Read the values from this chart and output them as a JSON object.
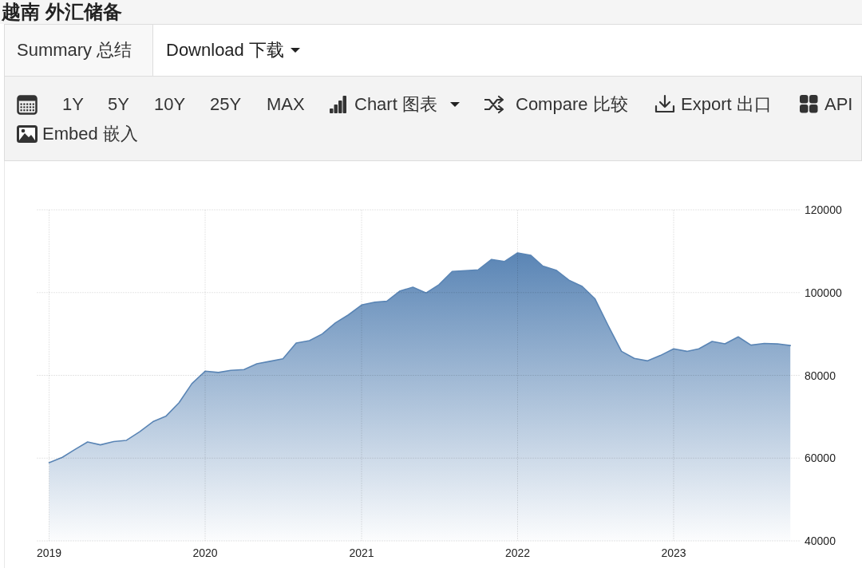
{
  "chart_data": {
    "type": "area",
    "title": "越南 外汇储备",
    "annotations": [
      "Summary 总结",
      "Download 下载",
      "1Y",
      "5Y",
      "10Y",
      "25Y",
      "MAX",
      "Chart 图表",
      "Compare 比较",
      "Export 出口",
      "API",
      "Embed 嵌入"
    ],
    "x": [
      "2019-01",
      "2019-02",
      "2019-03",
      "2019-04",
      "2019-05",
      "2019-06",
      "2019-07",
      "2019-08",
      "2019-09",
      "2019-10",
      "2019-11",
      "2019-12",
      "2020-01",
      "2020-02",
      "2020-03",
      "2020-04",
      "2020-05",
      "2020-06",
      "2020-07",
      "2020-08",
      "2020-09",
      "2020-10",
      "2020-11",
      "2020-12",
      "2021-01",
      "2021-02",
      "2021-03",
      "2021-04",
      "2021-05",
      "2021-06",
      "2021-07",
      "2021-08",
      "2021-09",
      "2021-10",
      "2021-11",
      "2021-12",
      "2022-01",
      "2022-02",
      "2022-03",
      "2022-04",
      "2022-05",
      "2022-06",
      "2022-07",
      "2022-08",
      "2022-09",
      "2022-10",
      "2022-11",
      "2022-12",
      "2023-01",
      "2023-02",
      "2023-03",
      "2023-04",
      "2023-05",
      "2023-06",
      "2023-07",
      "2023-08",
      "2023-09",
      "2023-10"
    ],
    "values": [
      58900,
      60200,
      62000,
      63900,
      63200,
      64000,
      64300,
      66400,
      68800,
      70100,
      73400,
      78000,
      81000,
      80700,
      81200,
      81400,
      82800,
      83400,
      84000,
      87800,
      88400,
      90000,
      92700,
      94600,
      97000,
      97700,
      97900,
      100400,
      101300,
      99900,
      101900,
      105100,
      105300,
      105500,
      108000,
      107500,
      109600,
      109000,
      106400,
      105400,
      103000,
      101500,
      98500,
      92000,
      85800,
      84100,
      83500,
      84800,
      86400,
      85800,
      86400,
      88200,
      87600,
      89300,
      87300,
      87700,
      87600,
      87200
    ],
    "color": "#5a85b5",
    "xlim": [
      "2018-12-03",
      "2023-10-23"
    ],
    "xticks": [
      "2019",
      "2020",
      "2021",
      "2022",
      "2023"
    ],
    "ylim": [
      40000,
      120000
    ],
    "yticks": [
      40000,
      60000,
      80000,
      100000,
      120000
    ],
    "grid": true
  }
}
